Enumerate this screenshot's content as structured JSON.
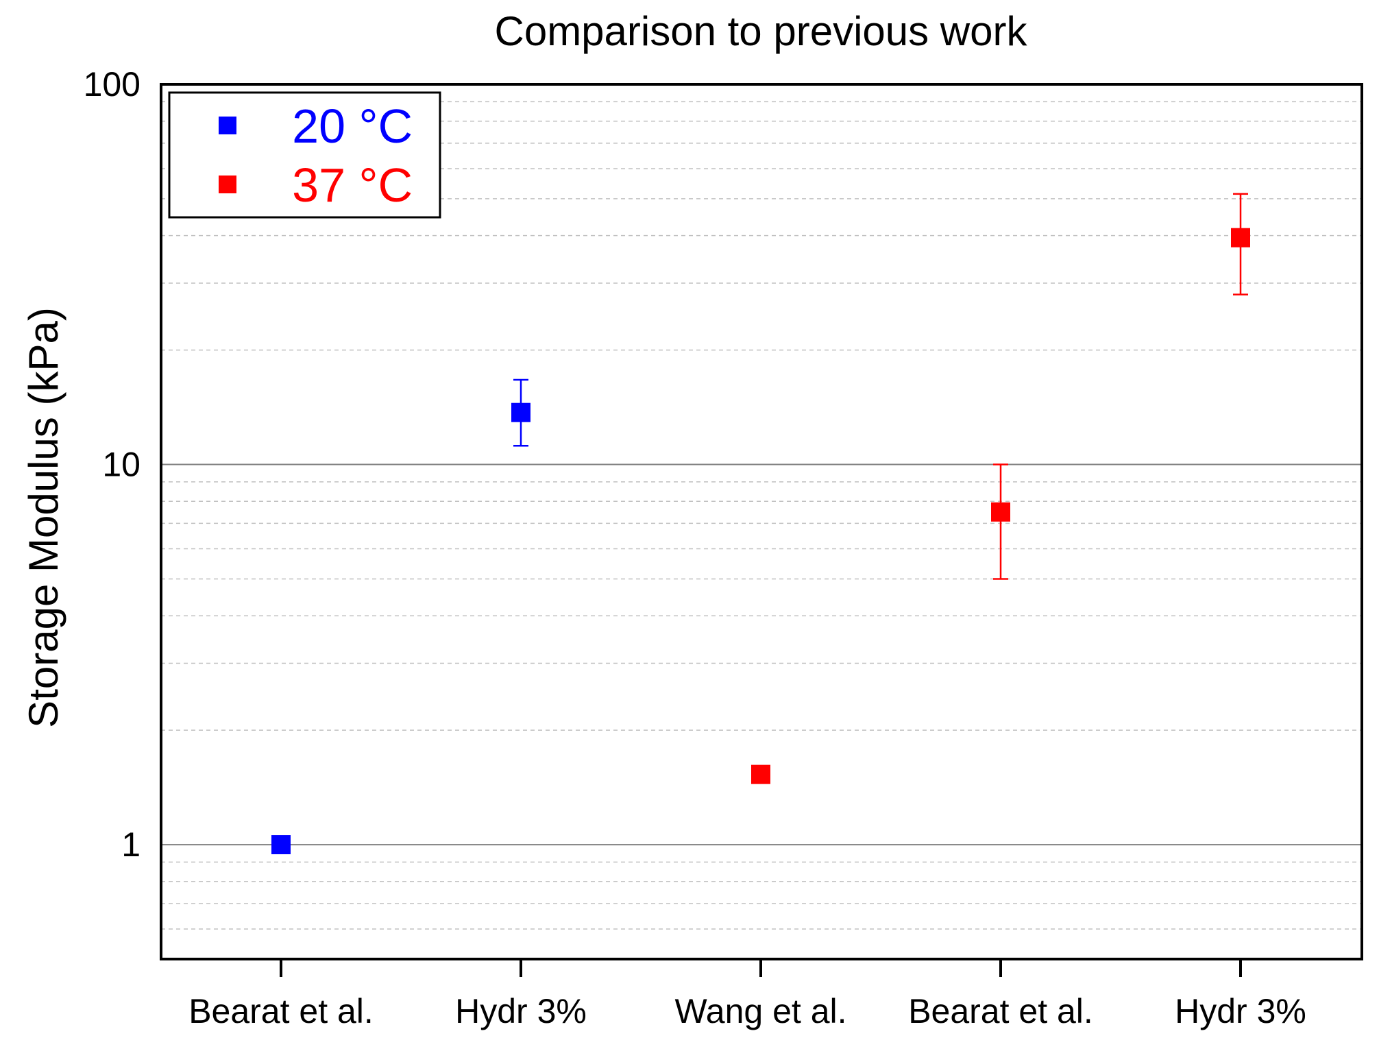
{
  "chart_data": {
    "type": "scatter",
    "title": "Comparison to previous work",
    "xlabel": "",
    "ylabel": "Storage Modulus (kPa)",
    "yscale": "log",
    "ylim": [
      0.5,
      100
    ],
    "yticks": [
      {
        "value": 1,
        "label": "1"
      },
      {
        "value": 10,
        "label": "10"
      },
      {
        "value": 100,
        "label": "100"
      }
    ],
    "grid": {
      "major": true,
      "minor": true,
      "minor_style": "dashed"
    },
    "categories": [
      "Bearat et al.",
      "Hydr 3%",
      "Wang et al.",
      "Bearat et al.",
      "Hydr 3%"
    ],
    "legend": {
      "placement": "top-left"
    },
    "series": [
      {
        "name": "20 °C",
        "color": "#0000ff",
        "points": [
          {
            "category_index": 0,
            "y": 1.0
          },
          {
            "category_index": 1,
            "y": 13.7,
            "err_low": 11.2,
            "err_high": 16.7
          }
        ]
      },
      {
        "name": "37 °C",
        "color": "#ff0000",
        "points": [
          {
            "category_index": 2,
            "y": 1.53
          },
          {
            "category_index": 3,
            "y": 7.5,
            "err_low": 5.0,
            "err_high": 10.0
          },
          {
            "category_index": 4,
            "y": 39.5,
            "err_low": 28.0,
            "err_high": 51.5
          }
        ]
      }
    ]
  }
}
